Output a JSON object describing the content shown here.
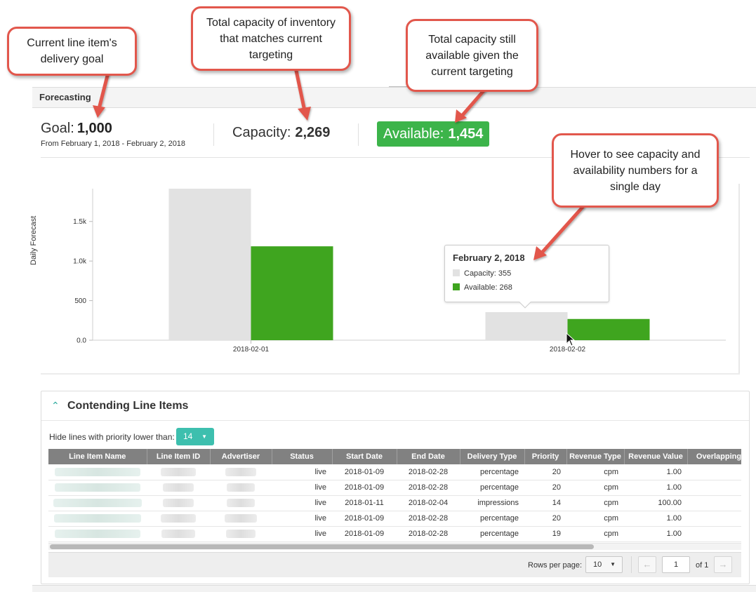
{
  "callouts": {
    "goal": "Current line item's delivery goal",
    "capacity": "Total capacity of inventory that matches current targeting",
    "available": "Total capacity still available given the current targeting",
    "hover": "Hover to see capacity and availability numbers for a single day"
  },
  "forecasting": {
    "title": "Forecasting",
    "goal_label": "Goal:",
    "goal_value": "1,000",
    "goal_range": "From February 1, 2018 - February 2, 2018",
    "capacity_label": "Capacity:",
    "capacity_value": "2,269",
    "available_label": "Available:",
    "available_value": "1,454"
  },
  "chart_data": {
    "type": "bar",
    "ylabel": "Daily Forecast",
    "categories": [
      "2018-02-01",
      "2018-02-02"
    ],
    "series": [
      {
        "name": "Capacity",
        "values": [
          1914,
          355
        ],
        "color": "#e2e2e2"
      },
      {
        "name": "Available",
        "values": [
          1186,
          268
        ],
        "color": "#3fa51f"
      }
    ],
    "yticks": [
      0,
      500,
      1000,
      1500
    ],
    "ytick_labels": [
      "0.0",
      "500",
      "1.0k",
      "1.5k"
    ],
    "ylim": [
      0,
      1914
    ]
  },
  "tooltip": {
    "date": "February 2, 2018",
    "capacity": "Capacity: 355",
    "available": "Available: 268"
  },
  "contending": {
    "title": "Contending Line Items",
    "filter_label": "Hide lines with priority lower than:",
    "filter_value": "14",
    "columns": [
      "Line Item Name",
      "Line Item ID",
      "Advertiser",
      "Status",
      "Start Date",
      "End Date",
      "Delivery Type",
      "Priority",
      "Revenue Type",
      "Revenue Value",
      "Overlapping"
    ],
    "rows": [
      {
        "status": "live",
        "start": "2018-01-09",
        "end": "2018-02-28",
        "delivery": "percentage",
        "priority": "20",
        "revenue_type": "cpm",
        "revenue_value": "1.00"
      },
      {
        "status": "live",
        "start": "2018-01-09",
        "end": "2018-02-28",
        "delivery": "percentage",
        "priority": "20",
        "revenue_type": "cpm",
        "revenue_value": "1.00"
      },
      {
        "status": "live",
        "start": "2018-01-11",
        "end": "2018-02-04",
        "delivery": "impressions",
        "priority": "14",
        "revenue_type": "cpm",
        "revenue_value": "100.00"
      },
      {
        "status": "live",
        "start": "2018-01-09",
        "end": "2018-02-28",
        "delivery": "percentage",
        "priority": "20",
        "revenue_type": "cpm",
        "revenue_value": "1.00"
      },
      {
        "status": "live",
        "start": "2018-01-09",
        "end": "2018-02-28",
        "delivery": "percentage",
        "priority": "19",
        "revenue_type": "cpm",
        "revenue_value": "1.00"
      }
    ],
    "pager": {
      "rows_per_page_label": "Rows per page:",
      "rows_per_page": "10",
      "page": "1",
      "of": "of 1",
      "prev_icon": "←",
      "next_icon": "→"
    }
  },
  "colors": {
    "accent_green": "#3cb44a",
    "bar_available": "#3fa51f",
    "bar_capacity": "#e2e2e2",
    "teal": "#3dbfae",
    "callout_border": "#e2574c"
  }
}
